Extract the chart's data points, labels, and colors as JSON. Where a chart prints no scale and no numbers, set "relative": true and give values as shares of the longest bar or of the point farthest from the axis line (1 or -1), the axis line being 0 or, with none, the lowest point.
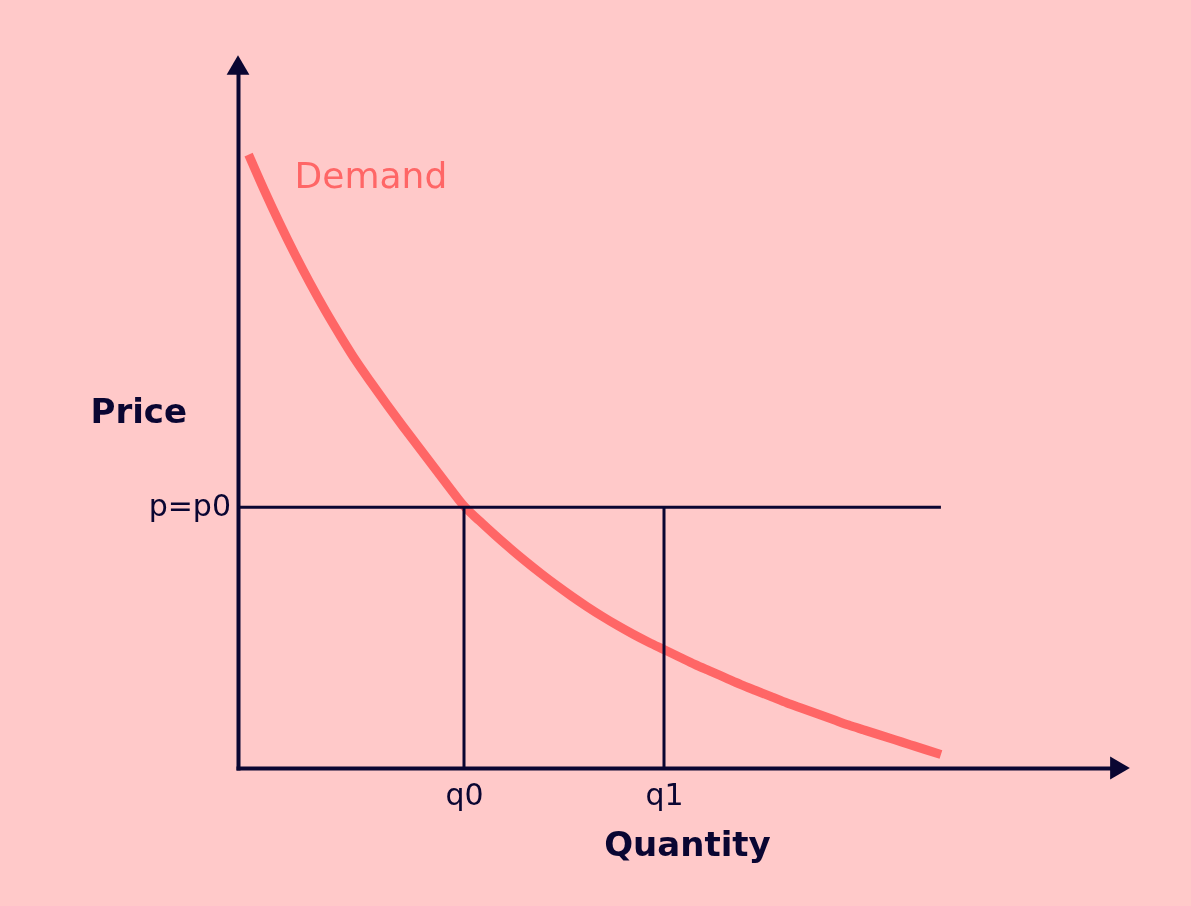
{
  "chart_data": {
    "type": "line",
    "relative": true,
    "xlabel": "Quantity",
    "ylabel": "Price",
    "categories": [
      null,
      null,
      null,
      null,
      null,
      null,
      null,
      null,
      null,
      null,
      null,
      null,
      null,
      null,
      "q0",
      null,
      null,
      null,
      null,
      null,
      null,
      null,
      null,
      null,
      null,
      null,
      null,
      "q1",
      null,
      null,
      null,
      null,
      null,
      null,
      null,
      null,
      null,
      null,
      null,
      null,
      null,
      null,
      null,
      null,
      null,
      null
    ],
    "series": [
      {
        "name": "Demand",
        "color": "#ff6666",
        "values": [
          1.0,
          0.943,
          0.889,
          0.838,
          0.79,
          0.745,
          0.703,
          0.663,
          0.627,
          0.592,
          0.558,
          0.525,
          0.492,
          0.459,
          0.427,
          0.403,
          0.38,
          0.358,
          0.337,
          0.317,
          0.298,
          0.28,
          0.263,
          0.247,
          0.232,
          0.218,
          0.205,
          0.193,
          0.181,
          0.169,
          0.158,
          0.147,
          0.136,
          0.126,
          0.116,
          0.106,
          0.097,
          0.088,
          0.079,
          0.07,
          0.062,
          0.054,
          0.046,
          0.038,
          0.03,
          0.022
        ]
      }
    ],
    "ref_lines": [
      {
        "axis": "y",
        "value": 0.425,
        "label": "p=p0",
        "color": "#0a0632"
      },
      {
        "axis": "x",
        "value": "q0",
        "color": "#0a0632"
      },
      {
        "axis": "x",
        "value": "q1",
        "color": "#0a0632"
      }
    ]
  }
}
